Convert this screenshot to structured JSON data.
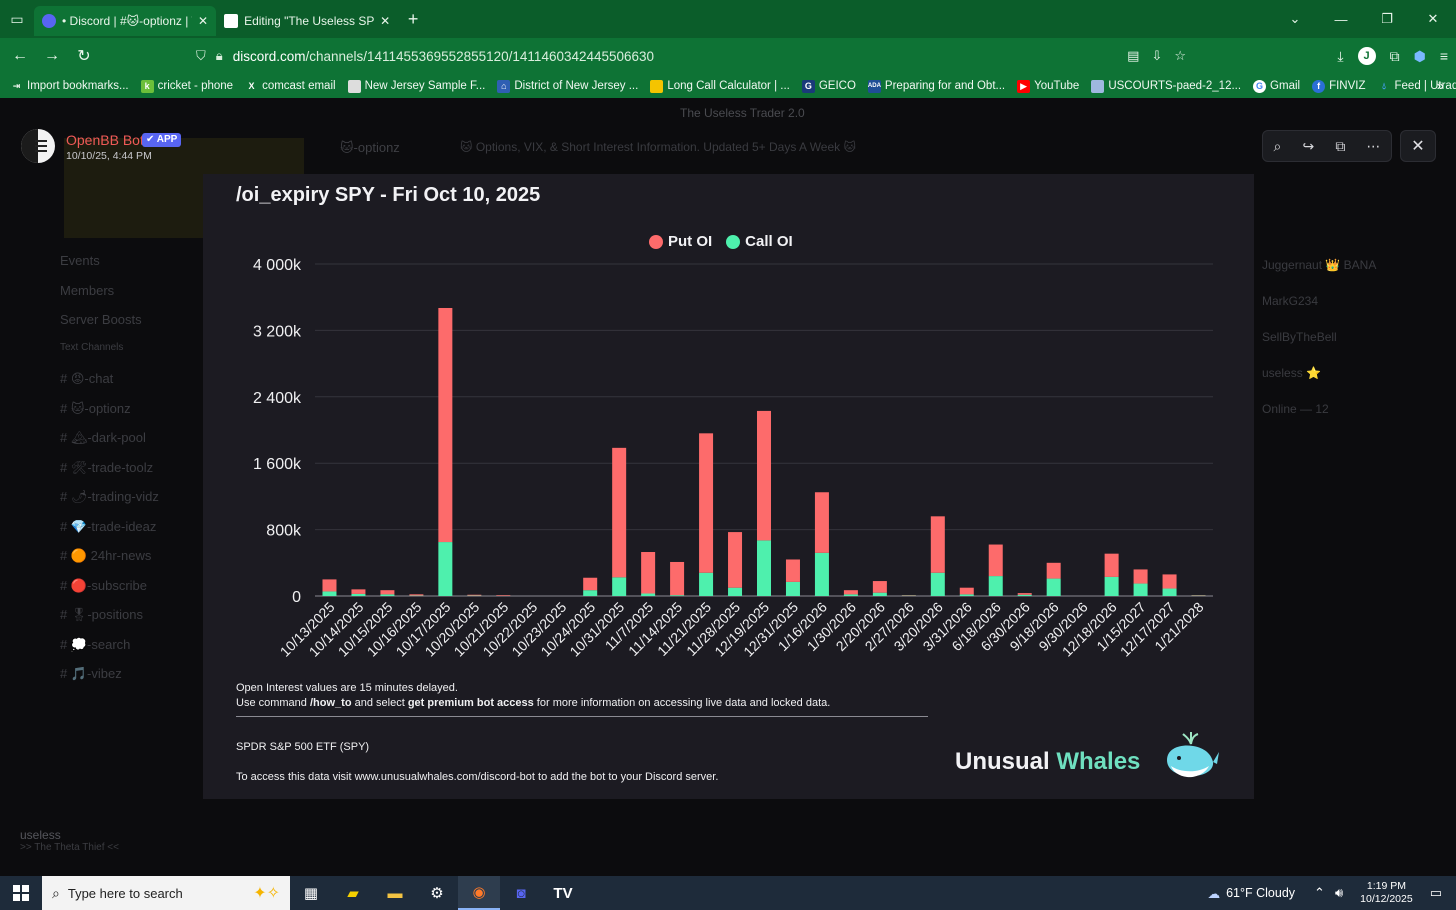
{
  "browser": {
    "tabs": [
      {
        "title": "• Discord | #🐱-optionz | The U",
        "favicon_color": "#5865f2",
        "active": true
      },
      {
        "title": "Editing \"The Useless SPY report",
        "favicon_color": "#ffffff",
        "active": false
      }
    ],
    "url_host": "discord.com",
    "url_path": "/channels/1411455369552855120/1411460342445506630",
    "bookmarks": [
      {
        "label": "Import bookmarks...",
        "icon": "import-icon",
        "color": "#ffffff"
      },
      {
        "label": "cricket - phone",
        "icon": "k",
        "color": "#6cbf3a"
      },
      {
        "label": "comcast email",
        "icon": "X",
        "color": "#000000"
      },
      {
        "label": "New Jersey Sample F...",
        "icon": "doc",
        "color": "#dddddd"
      },
      {
        "label": "District of New Jersey ...",
        "icon": "court",
        "color": "#2f5fb3"
      },
      {
        "label": "Long Call Calculator | ...",
        "icon": "calc",
        "color": "#f5c400"
      },
      {
        "label": "GEICO",
        "icon": "G",
        "color": "#1a3a7a"
      },
      {
        "label": "Preparing for and Obt...",
        "icon": "ADA",
        "color": "#1f4e96"
      },
      {
        "label": "YouTube",
        "icon": "yt",
        "color": "#ff0000"
      },
      {
        "label": "USCOURTS-paed-2_12...",
        "icon": "doc",
        "color": "#9fb8e0"
      },
      {
        "label": "Gmail",
        "icon": "G",
        "color": "#ffffff"
      },
      {
        "label": "FINVIZ",
        "icon": "f",
        "color": "#2a6fd6"
      },
      {
        "label": "Feed | Utradea",
        "icon": "drop",
        "color": "#4aa0ff"
      }
    ]
  },
  "discord_bg": {
    "server_title": "The Useless Trader 2.0",
    "channel": "🐱-optionz",
    "channel_desc": "🐱 Options, VIX, & Short Interest Information. Updated 5+ Days A Week 🐱",
    "sidebar": [
      "Events",
      "Members",
      "Server Boosts",
      "Text Channels",
      "# 😡-chat",
      "# 🐱-optionz",
      "# 🏔-dark-pool",
      "# 🛠-trade-toolz",
      "# 🌶-trading-vidz",
      "# 💎-trade-ideaz",
      "# 🟠 24hr-news",
      "# 🔴-subscribe",
      "# 🎖-positions",
      "# 💭-search",
      "# 🎵-vibez"
    ],
    "members": [
      "Juggernaut 👑 BANA",
      "MarkG234",
      "SellByTheBell",
      "useless ⭐",
      "Online — 12"
    ],
    "user": {
      "name": "useless",
      "status": ">> The Theta Thief <<"
    }
  },
  "post": {
    "bot_name": "OpenBB Bot",
    "badge": "✔ APP",
    "timestamp": "10/10/25, 4:44 PM"
  },
  "chart_data": {
    "type": "bar",
    "stacked": true,
    "title": "/oi_expiry SPY - Fri Oct 10, 2025",
    "legend": {
      "placement": "top-center"
    },
    "colors": {
      "put": "#fd6b6b",
      "call": "#4ef0ad"
    },
    "categories": [
      "10/13/2025",
      "10/14/2025",
      "10/15/2025",
      "10/16/2025",
      "10/17/2025",
      "10/20/2025",
      "10/21/2025",
      "10/22/2025",
      "10/23/2025",
      "10/24/2025",
      "10/31/2025",
      "11/7/2025",
      "11/14/2025",
      "11/21/2025",
      "11/28/2025",
      "12/19/2025",
      "12/31/2025",
      "1/16/2026",
      "1/30/2026",
      "2/20/2026",
      "2/27/2026",
      "3/20/2026",
      "3/31/2026",
      "6/18/2026",
      "6/30/2026",
      "9/18/2026",
      "9/30/2026",
      "12/18/2026",
      "1/15/2027",
      "12/17/2027",
      "1/21/2028"
    ],
    "series": [
      {
        "name": "Call OI",
        "values": [
          55,
          25,
          20,
          5,
          650,
          5,
          2,
          0,
          0,
          70,
          225,
          30,
          10,
          280,
          100,
          670,
          170,
          520,
          20,
          40,
          5,
          280,
          20,
          240,
          15,
          210,
          0,
          230,
          150,
          90,
          5
        ]
      },
      {
        "name": "Put OI",
        "values": [
          145,
          55,
          50,
          15,
          2820,
          10,
          8,
          0,
          0,
          150,
          1560,
          500,
          400,
          1680,
          670,
          1560,
          270,
          730,
          50,
          140,
          5,
          680,
          80,
          380,
          20,
          190,
          0,
          280,
          170,
          170,
          5
        ]
      }
    ],
    "ylim": [
      0,
      4000
    ],
    "ytick_values": [
      0,
      800,
      1600,
      2400,
      3200,
      4000
    ],
    "ytick_labels": [
      "0",
      "800k",
      "1 600k",
      "2 400k",
      "3 200k",
      "4 000k"
    ],
    "xlabel": "",
    "ylabel": "",
    "grid": true
  },
  "chart_footer": {
    "delay_note": "Open Interest values are 15 minutes delayed.",
    "cmd_pre": "Use command ",
    "cmd": "/how_to",
    "cmd_mid": " and select ",
    "cmd_select": "get premium bot access",
    "cmd_post": " for more information on accessing live data and locked data.",
    "ticker_line": "SPDR S&P 500 ETF (SPY)",
    "access_line": "To access this data visit www.unusualwhales.com/discord-bot to add the bot to your Discord server.",
    "brand_a": "Unusual",
    "brand_b": "Whales"
  },
  "taskbar": {
    "search_placeholder": "Type here to search",
    "weather": "61°F  Cloudy",
    "time": "1:19 PM",
    "date": "10/12/2025"
  }
}
